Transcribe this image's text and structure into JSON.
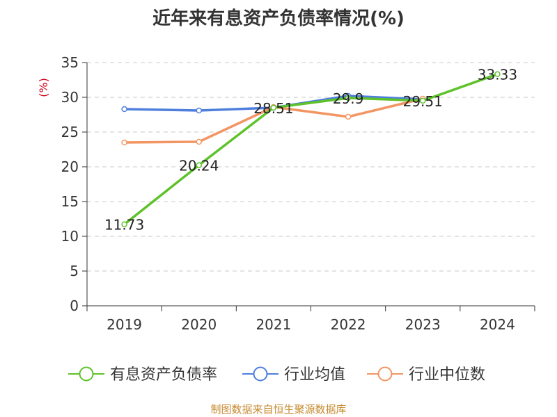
{
  "title": "近年来有息资产负债率情况(%)",
  "source": "制图数据来自恒生聚源数据库",
  "colors": {
    "green": "#5ec22a",
    "blue": "#4f7fdd",
    "orange": "#f39563"
  },
  "chart_data": {
    "type": "line",
    "x": [
      "2019",
      "2020",
      "2021",
      "2022",
      "2023",
      "2024"
    ],
    "ylabel": "(%)",
    "ylim": [
      0,
      35
    ],
    "yticks": [
      0,
      5,
      10,
      15,
      20,
      25,
      30,
      35
    ],
    "grid": true,
    "legend_position": "bottom",
    "series": [
      {
        "name": "有息资产负债率",
        "color": "#5ec22a",
        "labeled": true,
        "values": [
          11.73,
          20.24,
          28.51,
          29.9,
          29.51,
          33.33
        ],
        "labels": [
          "11.73",
          "20.24",
          "28.51",
          "29.9",
          "29.51",
          "33.33"
        ]
      },
      {
        "name": "行业均值",
        "color": "#4f7fdd",
        "labeled": false,
        "values": [
          28.3,
          28.1,
          28.5,
          30.2,
          29.7,
          null
        ]
      },
      {
        "name": "行业中位数",
        "color": "#f39563",
        "labeled": false,
        "values": [
          23.5,
          23.6,
          28.6,
          27.2,
          29.8,
          null
        ]
      }
    ]
  }
}
